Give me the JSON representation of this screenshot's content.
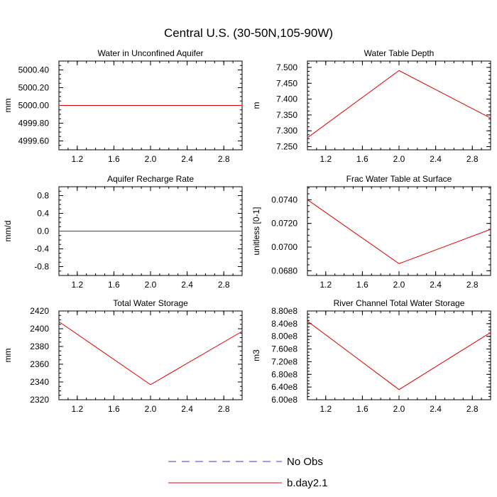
{
  "title": "Central U.S. (30-50N,105-90W)",
  "legend": {
    "placement": "bottom-center",
    "entries": [
      {
        "label": "No Obs",
        "color": "#3a3ad0",
        "style": "dashed"
      },
      {
        "label": "b.day2.1",
        "color": "#e00000",
        "style": "solid"
      }
    ]
  },
  "chart_data": [
    {
      "type": "line",
      "title": "Water in Unconfined Aquifer",
      "ylabel": "mm",
      "xlim": [
        1.0,
        3.0
      ],
      "ylim": [
        4999.5,
        5000.5
      ],
      "xticks": [
        "1.2",
        "1.6",
        "2.0",
        "2.4",
        "2.8"
      ],
      "xtick_values": [
        1.2,
        1.6,
        2.0,
        2.4,
        2.8
      ],
      "yticks": [
        "4999.60",
        "4999.80",
        "5000.00",
        "5000.20",
        "5000.40"
      ],
      "ytick_values": [
        4999.6,
        4999.8,
        5000.0,
        5000.2,
        5000.4
      ],
      "series": [
        {
          "name": "b.day2.1",
          "x": [
            1,
            2,
            3
          ],
          "values": [
            5000.0,
            5000.0,
            5000.0
          ]
        }
      ]
    },
    {
      "type": "line",
      "title": "Water Table Depth",
      "ylabel": "m",
      "xlim": [
        1.0,
        3.0
      ],
      "ylim": [
        7.24,
        7.52
      ],
      "xticks": [
        "1.2",
        "1.6",
        "2.0",
        "2.4",
        "2.8"
      ],
      "xtick_values": [
        1.2,
        1.6,
        2.0,
        2.4,
        2.8
      ],
      "yticks": [
        "7.250",
        "7.300",
        "7.350",
        "7.400",
        "7.450",
        "7.500"
      ],
      "ytick_values": [
        7.25,
        7.3,
        7.35,
        7.4,
        7.45,
        7.5
      ],
      "series": [
        {
          "name": "b.day2.1",
          "x": [
            1,
            2,
            3
          ],
          "values": [
            7.278,
            7.49,
            7.34
          ]
        }
      ]
    },
    {
      "type": "line",
      "title": "Aquifer Recharge Rate",
      "ylabel": "mm/d",
      "xlim": [
        1.0,
        3.0
      ],
      "ylim": [
        -1.0,
        1.0
      ],
      "xticks": [
        "1.2",
        "1.6",
        "2.0",
        "2.4",
        "2.8"
      ],
      "xtick_values": [
        1.2,
        1.6,
        2.0,
        2.4,
        2.8
      ],
      "yticks": [
        "-0.8",
        "-0.4",
        "0.0",
        "0.4",
        "0.8"
      ],
      "ytick_values": [
        -0.8,
        -0.4,
        0.0,
        0.4,
        0.8
      ],
      "series": [
        {
          "name": "b.day2.1",
          "x": [
            1,
            2,
            3
          ],
          "values": [
            0.0,
            0.0,
            0.0
          ]
        }
      ]
    },
    {
      "type": "line",
      "title": "Frac Water Table at Surface",
      "ylabel": "unitless [0-1]",
      "xlim": [
        1.0,
        3.0
      ],
      "ylim": [
        0.0676,
        0.0751
      ],
      "xticks": [
        "1.2",
        "1.6",
        "2.0",
        "2.4",
        "2.8"
      ],
      "xtick_values": [
        1.2,
        1.6,
        2.0,
        2.4,
        2.8
      ],
      "yticks": [
        "0.0680",
        "0.0700",
        "0.0720",
        "0.0740"
      ],
      "ytick_values": [
        0.068,
        0.07,
        0.072,
        0.074
      ],
      "series": [
        {
          "name": "b.day2.1",
          "x": [
            1,
            2,
            3
          ],
          "values": [
            0.074,
            0.0686,
            0.0715
          ]
        }
      ]
    },
    {
      "type": "line",
      "title": "Total Water Storage",
      "ylabel": "mm",
      "xlim": [
        1.0,
        3.0
      ],
      "ylim": [
        2320,
        2420
      ],
      "xticks": [
        "1.2",
        "1.6",
        "2.0",
        "2.4",
        "2.8"
      ],
      "xtick_values": [
        1.2,
        1.6,
        2.0,
        2.4,
        2.8
      ],
      "yticks": [
        "2320",
        "2340",
        "2360",
        "2380",
        "2400",
        "2420"
      ],
      "ytick_values": [
        2320,
        2340,
        2360,
        2380,
        2400,
        2420
      ],
      "series": [
        {
          "name": "b.day2.1",
          "x": [
            1,
            2,
            3
          ],
          "values": [
            2408,
            2337,
            2397
          ]
        }
      ]
    },
    {
      "type": "line",
      "title": "River Channel Total Water Storage",
      "ylabel": "m3",
      "xlim": [
        1.0,
        3.0
      ],
      "ylim": [
        600000000,
        880000000
      ],
      "xticks": [
        "1.2",
        "1.6",
        "2.0",
        "2.4",
        "2.8"
      ],
      "xtick_values": [
        1.2,
        1.6,
        2.0,
        2.4,
        2.8
      ],
      "yticks": [
        "6.00e8",
        "6.40e8",
        "6.80e8",
        "7.20e8",
        "7.60e8",
        "8.00e8",
        "8.40e8",
        "8.80e8"
      ],
      "ytick_values": [
        600000000,
        640000000,
        680000000,
        720000000,
        760000000,
        800000000,
        840000000,
        880000000
      ],
      "series": [
        {
          "name": "b.day2.1",
          "x": [
            1,
            2,
            3
          ],
          "values": [
            848000000,
            632000000,
            812000000
          ]
        }
      ]
    }
  ]
}
